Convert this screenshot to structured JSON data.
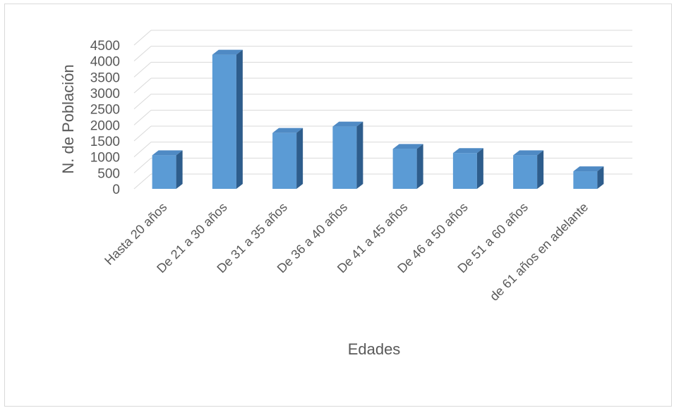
{
  "chart_data": {
    "type": "bar",
    "style": "3d-column",
    "categories": [
      "Hasta 20 años",
      "De 21 a 30 años",
      "De 31 a 35 años",
      "De 36 a 40 años",
      "De 41 a 45 años",
      "De 46 a 50 años",
      "De 51 a 60 años",
      "de 61 años en adelante"
    ],
    "values": [
      1050,
      4200,
      1750,
      1950,
      1250,
      1120,
      1050,
      550
    ],
    "xlabel": "Edades",
    "ylabel": "N. de Población",
    "ylim": [
      0,
      4500
    ],
    "yticks": [
      "0",
      "500",
      "1000",
      "1500",
      "2000",
      "2500",
      "3000",
      "3500",
      "4000",
      "4500"
    ],
    "grid": true,
    "legend": "none",
    "colors": {
      "bar_front": "#5b9bd5",
      "bar_top": "#4f8ac4",
      "bar_side": "#2e5d8c",
      "grid": "#d9d9d9",
      "text": "#595959"
    }
  }
}
